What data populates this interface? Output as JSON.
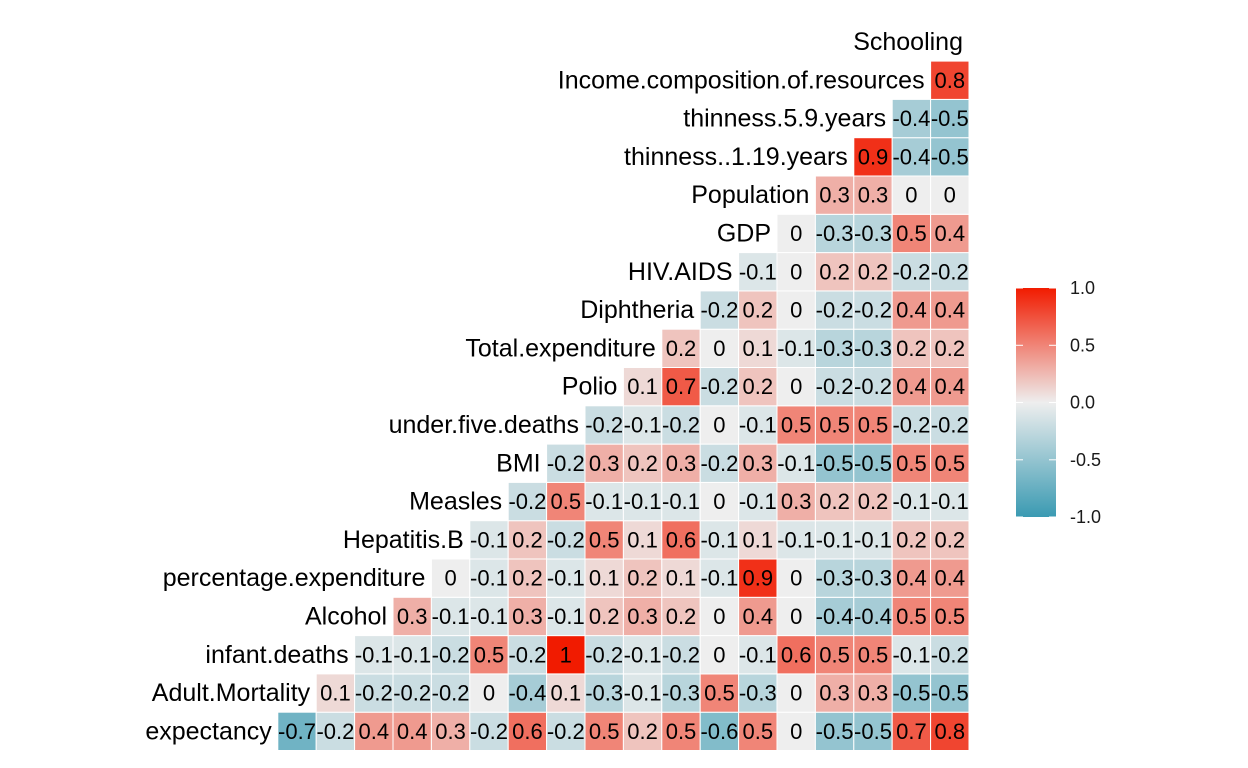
{
  "chart_data": {
    "type": "heatmap",
    "title": "",
    "variables": [
      "expectancy",
      "Adult.Mortality",
      "infant.deaths",
      "Alcohol",
      "percentage.expenditure",
      "Hepatitis.B",
      "Measles",
      "BMI",
      "under.five.deaths",
      "Polio",
      "Total.expenditure",
      "Diphtheria",
      "HIV.AIDS",
      "GDP",
      "Population",
      "thinness..1.19.years",
      "thinness.5.9.years",
      "Income.composition.of.resources",
      "Schooling"
    ],
    "correlations": [
      [
        -0.7,
        -0.2,
        0.4,
        0.4,
        0.3,
        -0.2,
        0.6,
        -0.2,
        0.5,
        0.2,
        0.5,
        -0.6,
        0.5,
        0,
        -0.5,
        -0.5,
        0.7,
        0.8
      ],
      [
        0.1,
        -0.2,
        -0.2,
        -0.2,
        0,
        -0.4,
        0.1,
        -0.3,
        -0.1,
        -0.3,
        0.5,
        -0.3,
        0,
        0.3,
        0.3,
        -0.5,
        -0.5
      ],
      [
        -0.1,
        -0.1,
        -0.2,
        0.5,
        -0.2,
        1,
        -0.2,
        -0.1,
        -0.2,
        0,
        -0.1,
        0.6,
        0.5,
        0.5,
        -0.1,
        -0.2
      ],
      [
        0.3,
        -0.1,
        -0.1,
        0.3,
        -0.1,
        0.2,
        0.3,
        0.2,
        0,
        0.4,
        0,
        -0.4,
        -0.4,
        0.5,
        0.5
      ],
      [
        0,
        -0.1,
        0.2,
        -0.1,
        0.1,
        0.2,
        0.1,
        -0.1,
        0.9,
        0,
        -0.3,
        -0.3,
        0.4,
        0.4
      ],
      [
        -0.1,
        0.2,
        -0.2,
        0.5,
        0.1,
        0.6,
        -0.1,
        0.1,
        -0.1,
        -0.1,
        -0.1,
        0.2,
        0.2
      ],
      [
        -0.2,
        0.5,
        -0.1,
        -0.1,
        -0.1,
        0,
        -0.1,
        0.3,
        0.2,
        0.2,
        -0.1,
        -0.1
      ],
      [
        -0.2,
        0.3,
        0.2,
        0.3,
        -0.2,
        0.3,
        -0.1,
        -0.5,
        -0.5,
        0.5,
        0.5
      ],
      [
        -0.2,
        -0.1,
        -0.2,
        0,
        -0.1,
        0.5,
        0.5,
        0.5,
        -0.2,
        -0.2
      ],
      [
        0.1,
        0.7,
        -0.2,
        0.2,
        0,
        -0.2,
        -0.2,
        0.4,
        0.4
      ],
      [
        0.2,
        0,
        0.1,
        -0.1,
        -0.3,
        -0.3,
        0.2,
        0.2
      ],
      [
        -0.2,
        0.2,
        0,
        -0.2,
        -0.2,
        0.4,
        0.4
      ],
      [
        -0.1,
        0,
        0.2,
        0.2,
        -0.2,
        -0.2
      ],
      [
        0,
        -0.3,
        -0.3,
        0.5,
        0.4
      ],
      [
        0.3,
        0.3,
        0,
        0
      ],
      [
        0.9,
        -0.4,
        -0.5
      ],
      [
        -0.4,
        -0.5
      ],
      [
        0.8
      ],
      []
    ],
    "color_scale": {
      "low": "#3a9ab2",
      "mid": "#eeeeee",
      "high": "#f11b00"
    },
    "legend": {
      "placement": "right",
      "ticks": [
        "1.0",
        "0.5",
        "0.0",
        "-0.5",
        "-1.0"
      ],
      "range": [
        -1,
        1
      ]
    }
  }
}
